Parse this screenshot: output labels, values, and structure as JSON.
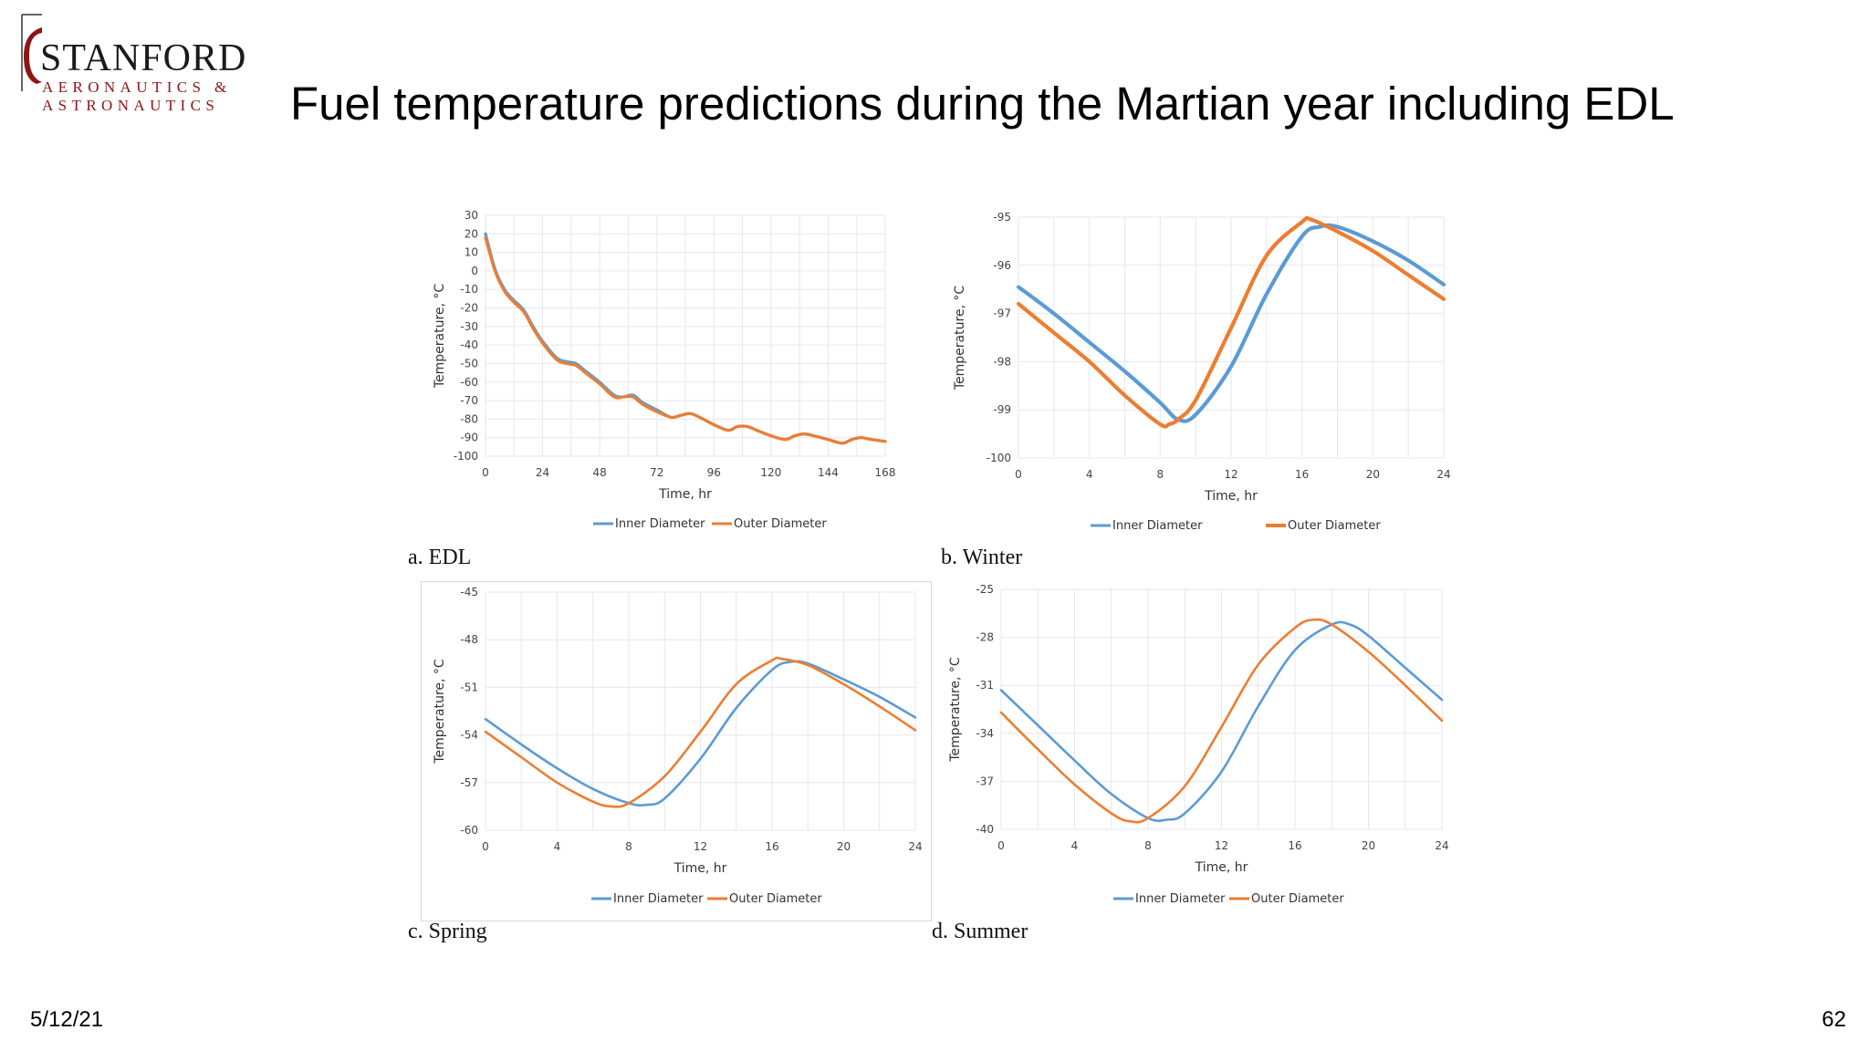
{
  "logo": {
    "name": "STANFORD",
    "line1": "AERONAUTICS &",
    "line2": "ASTRONAUTICS"
  },
  "slide": {
    "title": "Fuel temperature predictions during the Martian year including EDL"
  },
  "footer": {
    "date": "5/12/21",
    "page": "62"
  },
  "colors": {
    "inner": "#5b9bd5",
    "outer": "#ed7d31",
    "grid": "#e6e6ef"
  },
  "chart_data": [
    {
      "type": "line",
      "caption": "a. EDL",
      "xlabel": "Time, hr",
      "ylabel": "Temperature, °C",
      "xlim": [
        0,
        168
      ],
      "ylim": [
        -100,
        30
      ],
      "xticks": [
        0,
        24,
        48,
        72,
        96,
        120,
        144,
        168
      ],
      "yticks": [
        30,
        20,
        10,
        0,
        -10,
        -20,
        -30,
        -40,
        -50,
        -60,
        -70,
        -80,
        -90,
        -100
      ],
      "legend": "bottom",
      "series": [
        {
          "name": "Inner Diameter",
          "x": [
            0,
            4,
            8,
            12,
            16,
            20,
            24,
            30,
            34,
            38,
            42,
            48,
            54,
            58,
            62,
            66,
            72,
            78,
            82,
            86,
            90,
            96,
            102,
            106,
            110,
            114,
            120,
            126,
            130,
            134,
            138,
            144,
            150,
            154,
            158,
            162,
            168
          ],
          "y": [
            20,
            1,
            -10,
            -16,
            -21,
            -30,
            -38,
            -47,
            -49,
            -50,
            -54,
            -60,
            -67,
            -68,
            -67,
            -71,
            -75,
            -79,
            -78,
            -77,
            -79,
            -83,
            -86,
            -84,
            -84,
            -86,
            -89,
            -91,
            -89,
            -88,
            -89,
            -91,
            -93,
            -91,
            -90,
            -91,
            -92
          ]
        },
        {
          "name": "Outer Diameter",
          "x": [
            0,
            4,
            8,
            12,
            16,
            20,
            24,
            30,
            34,
            38,
            42,
            48,
            54,
            58,
            62,
            66,
            72,
            78,
            82,
            86,
            90,
            96,
            102,
            106,
            110,
            114,
            120,
            126,
            130,
            134,
            138,
            144,
            150,
            154,
            158,
            162,
            168
          ],
          "y": [
            18,
            0,
            -11,
            -17,
            -22,
            -31,
            -39,
            -48,
            -50,
            -51,
            -55,
            -61,
            -68,
            -68,
            -68,
            -72,
            -76,
            -79,
            -78,
            -77,
            -79,
            -83,
            -86,
            -84,
            -84,
            -86,
            -89,
            -91,
            -89,
            -88,
            -89,
            -91,
            -93,
            -91,
            -90,
            -91,
            -92
          ]
        }
      ]
    },
    {
      "type": "line",
      "caption": "b. Winter",
      "xlabel": "Time, hr",
      "ylabel": "Temperature, °C",
      "xlim": [
        0,
        24
      ],
      "ylim": [
        -100,
        -95
      ],
      "xticks": [
        0,
        4,
        8,
        12,
        16,
        20,
        24
      ],
      "yticks": [
        -95,
        -96,
        -97,
        -98,
        -99,
        -100
      ],
      "legend": "bottom",
      "series": [
        {
          "name": "Inner Diameter",
          "x": [
            0,
            2,
            4,
            6,
            8,
            9,
            10,
            12,
            14,
            16,
            17,
            18,
            20,
            22,
            24
          ],
          "y": [
            -96.45,
            -97.0,
            -97.6,
            -98.2,
            -98.85,
            -99.2,
            -99.1,
            -98.1,
            -96.6,
            -95.4,
            -95.2,
            -95.2,
            -95.5,
            -95.9,
            -96.4
          ]
        },
        {
          "name": "Outer Diameter",
          "x": [
            0,
            2,
            4,
            6,
            8,
            8.5,
            9,
            10,
            12,
            14,
            16,
            16.5,
            18,
            20,
            22,
            24
          ],
          "y": [
            -96.8,
            -97.4,
            -98.0,
            -98.7,
            -99.3,
            -99.3,
            -99.2,
            -98.8,
            -97.3,
            -95.8,
            -95.1,
            -95.05,
            -95.3,
            -95.7,
            -96.2,
            -96.7
          ]
        }
      ]
    },
    {
      "type": "line",
      "caption": "c. Spring",
      "xlabel": "Time, hr",
      "ylabel": "Temperature, °C",
      "xlim": [
        0,
        24
      ],
      "ylim": [
        -60,
        -45
      ],
      "xticks": [
        0,
        4,
        8,
        12,
        16,
        20,
        24
      ],
      "yticks": [
        -45,
        -48,
        -51,
        -54,
        -57,
        -60
      ],
      "legend": "bottom",
      "series": [
        {
          "name": "Inner Diameter",
          "x": [
            0,
            2,
            4,
            6,
            8,
            9,
            10,
            12,
            14,
            16,
            17,
            18,
            20,
            22,
            24
          ],
          "y": [
            -53.0,
            -54.6,
            -56.1,
            -57.4,
            -58.3,
            -58.4,
            -58.0,
            -55.5,
            -52.3,
            -49.9,
            -49.4,
            -49.5,
            -50.5,
            -51.6,
            -52.9
          ]
        },
        {
          "name": "Outer Diameter",
          "x": [
            0,
            2,
            4,
            6,
            7,
            8,
            10,
            12,
            14,
            16,
            16.5,
            18,
            20,
            22,
            24
          ],
          "y": [
            -53.8,
            -55.4,
            -57.0,
            -58.2,
            -58.5,
            -58.3,
            -56.6,
            -53.8,
            -50.8,
            -49.3,
            -49.2,
            -49.6,
            -50.8,
            -52.2,
            -53.7
          ]
        }
      ]
    },
    {
      "type": "line",
      "caption": "d. Summer",
      "xlabel": "Time, hr",
      "ylabel": "Temperature, °C",
      "xlim": [
        0,
        24
      ],
      "ylim": [
        -40,
        -25
      ],
      "xticks": [
        0,
        4,
        8,
        12,
        16,
        20,
        24
      ],
      "yticks": [
        -25,
        -28,
        -31,
        -34,
        -37,
        -40
      ],
      "legend": "bottom",
      "series": [
        {
          "name": "Inner Diameter",
          "x": [
            0,
            2,
            4,
            6,
            8,
            9,
            10,
            12,
            14,
            16,
            18,
            19,
            20,
            22,
            24
          ],
          "y": [
            -31.3,
            -33.5,
            -35.7,
            -37.8,
            -39.3,
            -39.4,
            -39.0,
            -36.4,
            -32.3,
            -28.8,
            -27.2,
            -27.2,
            -27.9,
            -29.9,
            -31.9
          ]
        },
        {
          "name": "Outer Diameter",
          "x": [
            0,
            2,
            4,
            6,
            7,
            8,
            10,
            12,
            14,
            16,
            17,
            18,
            20,
            22,
            24
          ],
          "y": [
            -32.7,
            -35.0,
            -37.2,
            -39.0,
            -39.5,
            -39.3,
            -37.3,
            -33.6,
            -29.7,
            -27.4,
            -26.9,
            -27.2,
            -28.9,
            -31.0,
            -33.2
          ]
        }
      ]
    }
  ]
}
